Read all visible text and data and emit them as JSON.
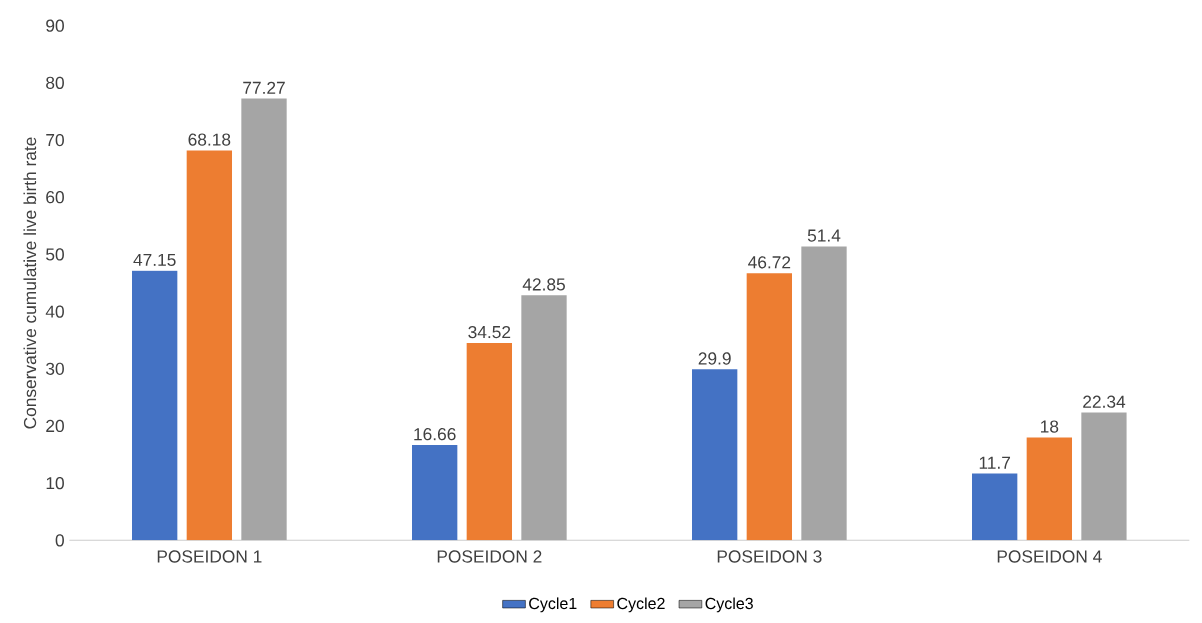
{
  "chart_data": {
    "type": "bar",
    "ylabel": "Conservative cumulative live birth rate",
    "categories": [
      "POSEIDON 1",
      "POSEIDON 2",
      "POSEIDON 3",
      "POSEIDON 4"
    ],
    "series": [
      {
        "name": "Cycle1",
        "color": "#4472c4",
        "values": [
          47.15,
          16.66,
          29.9,
          11.7
        ]
      },
      {
        "name": "Cycle2",
        "color": "#ed7d31",
        "values": [
          68.18,
          34.52,
          46.72,
          18
        ]
      },
      {
        "name": "Cycle3",
        "color": "#a5a5a5",
        "values": [
          77.27,
          42.85,
          51.4,
          22.34
        ]
      }
    ],
    "ylim": [
      0,
      90
    ],
    "yticks": [
      0,
      10,
      20,
      30,
      40,
      50,
      60,
      70,
      80,
      90
    ],
    "data_labels": true,
    "legend": "bottom",
    "grid": false
  }
}
